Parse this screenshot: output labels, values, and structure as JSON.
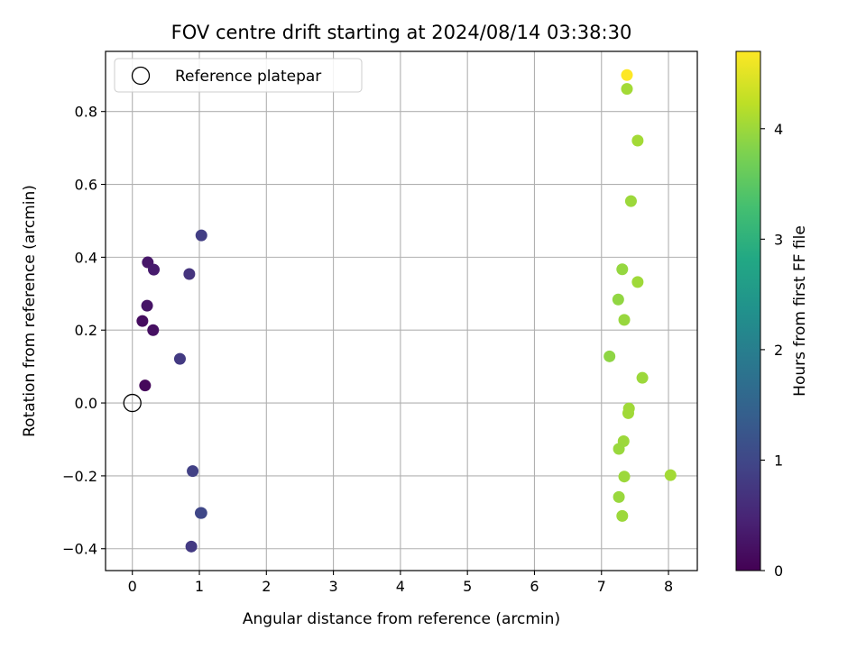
{
  "chart_data": {
    "type": "scatter",
    "title": "FOV centre drift starting at 2024/08/14 03:38:30",
    "xlabel": "Angular distance from reference (arcmin)",
    "ylabel": "Rotation from reference (arcmin)",
    "xlim": [
      -0.4,
      8.43
    ],
    "ylim": [
      -0.46,
      0.965
    ],
    "xticks": [
      0,
      1,
      2,
      3,
      4,
      5,
      6,
      7,
      8
    ],
    "xtick_labels": [
      "0",
      "1",
      "2",
      "3",
      "4",
      "5",
      "6",
      "7",
      "8"
    ],
    "yticks": [
      -0.4,
      -0.2,
      0.0,
      0.2,
      0.4,
      0.6,
      0.8
    ],
    "ytick_labels": [
      "−0.4",
      "−0.2",
      "0.0",
      "0.2",
      "0.4",
      "0.6",
      "0.8"
    ],
    "grid": true,
    "legend": {
      "label": "Reference platepar",
      "placement": "top-left"
    },
    "reference_point": {
      "x": 0.0,
      "y": 0.0
    },
    "colorbar": {
      "label": "Hours from first FF file",
      "range": [
        0,
        4.7
      ],
      "ticks": [
        0,
        1,
        2,
        3,
        4
      ],
      "tick_labels": [
        "0",
        "1",
        "2",
        "3",
        "4"
      ],
      "colormap": "viridis"
    },
    "points": [
      {
        "x": 0.19,
        "y": 0.048,
        "c": 0.1
      },
      {
        "x": 0.15,
        "y": 0.225,
        "c": 0.15
      },
      {
        "x": 0.31,
        "y": 0.2,
        "c": 0.2
      },
      {
        "x": 0.22,
        "y": 0.267,
        "c": 0.25
      },
      {
        "x": 0.23,
        "y": 0.386,
        "c": 0.3
      },
      {
        "x": 0.32,
        "y": 0.366,
        "c": 0.35
      },
      {
        "x": 0.71,
        "y": 0.121,
        "c": 0.8
      },
      {
        "x": 0.85,
        "y": 0.354,
        "c": 0.7
      },
      {
        "x": 1.03,
        "y": 0.46,
        "c": 0.85
      },
      {
        "x": 0.9,
        "y": -0.187,
        "c": 0.9
      },
      {
        "x": 1.02,
        "y": -0.302,
        "c": 0.95
      },
      {
        "x": 1.03,
        "y": -0.302,
        "c": 1.0
      },
      {
        "x": 0.88,
        "y": -0.394,
        "c": 0.8
      },
      {
        "x": 7.12,
        "y": 0.128,
        "c": 3.9
      },
      {
        "x": 7.25,
        "y": 0.284,
        "c": 3.92
      },
      {
        "x": 7.31,
        "y": 0.367,
        "c": 3.95
      },
      {
        "x": 7.34,
        "y": 0.228,
        "c": 3.97
      },
      {
        "x": 7.44,
        "y": 0.554,
        "c": 4.0
      },
      {
        "x": 7.54,
        "y": 0.332,
        "c": 4.02
      },
      {
        "x": 7.54,
        "y": 0.72,
        "c": 4.05
      },
      {
        "x": 7.61,
        "y": 0.069,
        "c": 4.0
      },
      {
        "x": 7.41,
        "y": -0.015,
        "c": 4.02
      },
      {
        "x": 7.4,
        "y": -0.028,
        "c": 4.03
      },
      {
        "x": 7.33,
        "y": -0.105,
        "c": 4.0
      },
      {
        "x": 7.26,
        "y": -0.126,
        "c": 3.98
      },
      {
        "x": 7.34,
        "y": -0.202,
        "c": 4.0
      },
      {
        "x": 7.26,
        "y": -0.258,
        "c": 3.98
      },
      {
        "x": 7.31,
        "y": -0.31,
        "c": 4.0
      },
      {
        "x": 8.03,
        "y": -0.198,
        "c": 4.05
      },
      {
        "x": 7.38,
        "y": 0.862,
        "c": 4.05
      },
      {
        "x": 7.38,
        "y": 0.9,
        "c": 4.7
      }
    ]
  }
}
